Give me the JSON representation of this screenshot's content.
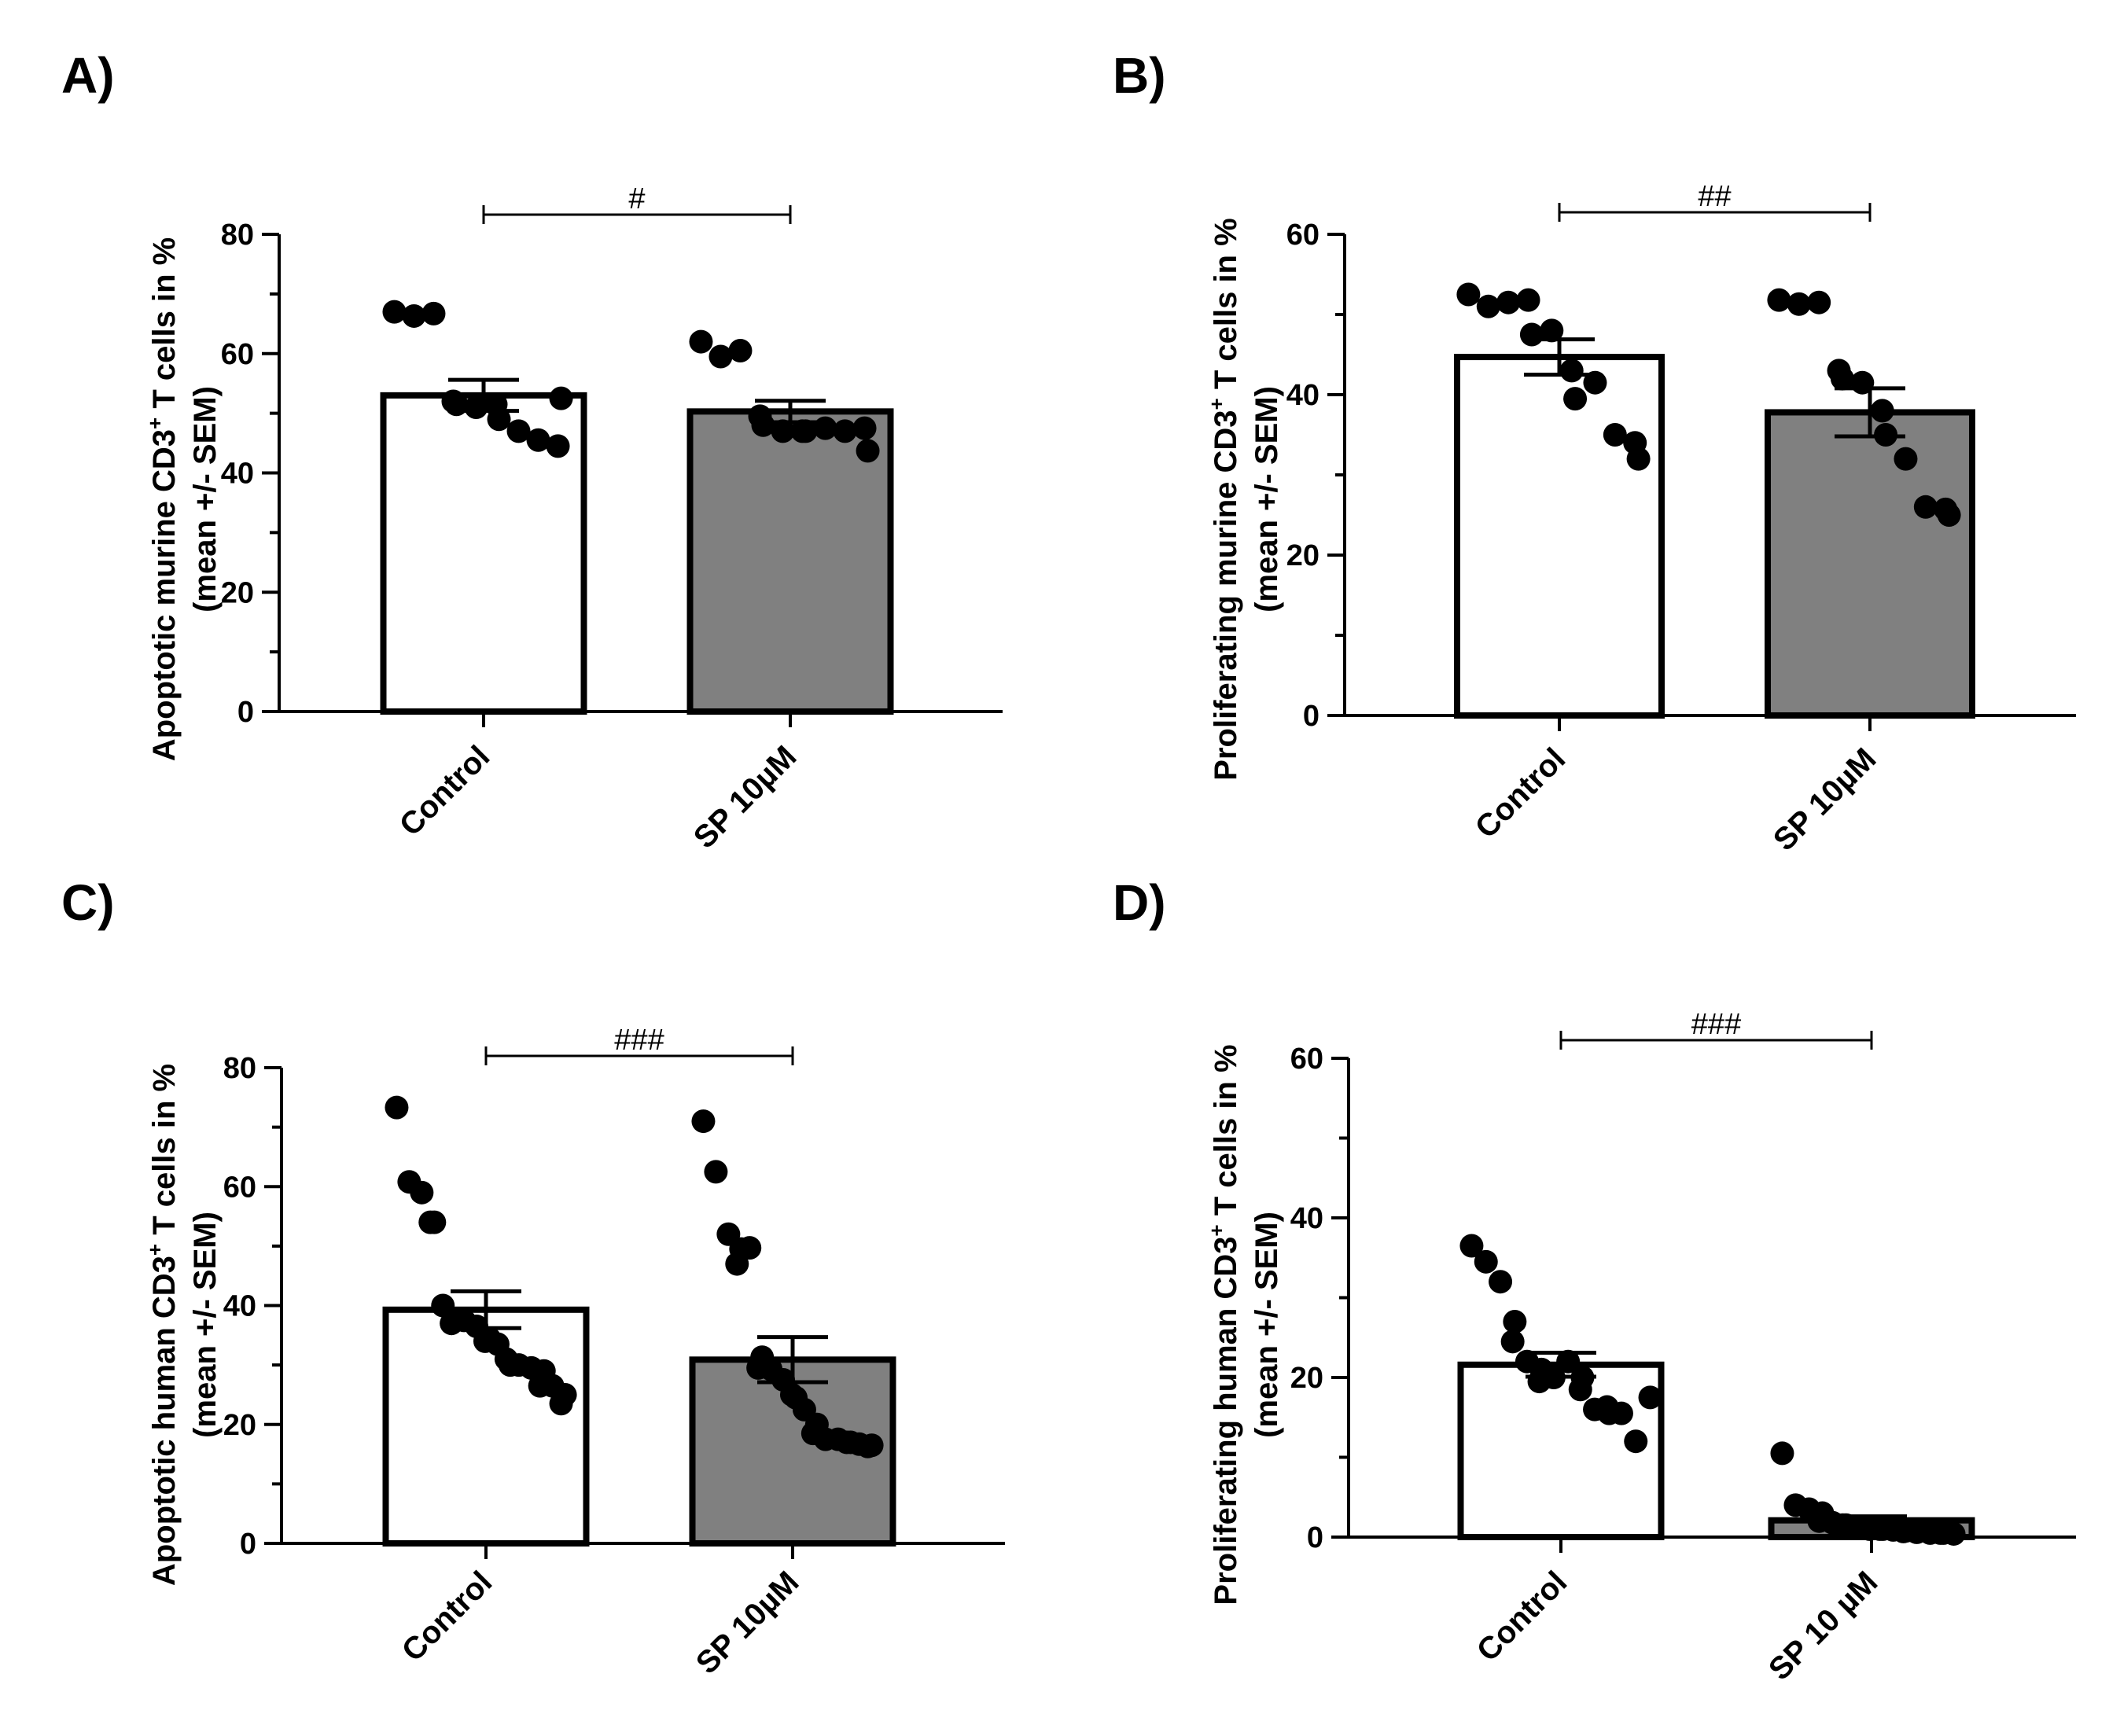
{
  "colors": {
    "axis": "#000000",
    "control_fill": "#ffffff",
    "treatment_fill": "#808080",
    "point": "#000000"
  },
  "chart_data": [
    {
      "type": "bar",
      "panel_label": "A)",
      "ylabel_lines": [
        {
          "pre": "Apoptotic murine  CD3",
          "sup": "+",
          "post": " T cells in %"
        },
        {
          "pre": "(mean +/- SEM)",
          "sup": "",
          "post": ""
        }
      ],
      "categories": [
        "Control",
        "SP 10µM"
      ],
      "means": [
        53,
        50.3
      ],
      "sem": [
        2.6,
        1.8
      ],
      "points": [
        [
          67,
          66.3,
          66.7,
          52,
          51.5,
          51,
          51.5,
          49,
          47,
          45.5,
          44.5,
          52.5
        ],
        [
          62,
          59.5,
          60.5,
          49.5,
          48,
          47,
          47,
          47,
          47.5,
          47,
          47.5,
          43.7
        ]
      ],
      "ylim": [
        0,
        80
      ],
      "yticks": [
        0,
        20,
        40,
        60,
        80
      ],
      "significance": "#"
    },
    {
      "type": "bar",
      "panel_label": "B)",
      "ylabel_lines": [
        {
          "pre": "Proliferating murine CD3",
          "sup": "+",
          "post": " T cells in %"
        },
        {
          "pre": "(mean +/- SEM)",
          "sup": "",
          "post": ""
        }
      ],
      "categories": [
        "Control",
        "SP 10µM"
      ],
      "means": [
        44.7,
        37.8
      ],
      "sem": [
        2.2,
        3.0
      ],
      "points": [
        [
          52.5,
          51,
          51.5,
          51.8,
          47.5,
          48,
          43,
          39.5,
          41.5,
          35,
          34,
          32
        ],
        [
          51.8,
          51.3,
          51.5,
          43,
          42,
          41.5,
          38,
          35,
          32,
          26,
          25.7,
          25
        ]
      ],
      "ylim": [
        0,
        60
      ],
      "yticks": [
        0,
        20,
        40,
        60
      ],
      "significance": "##"
    },
    {
      "type": "bar",
      "panel_label": "C)",
      "ylabel_lines": [
        {
          "pre": "Apoptotic human  CD3",
          "sup": "+",
          "post": " T cells in %"
        },
        {
          "pre": "(mean +/- SEM)",
          "sup": "",
          "post": ""
        }
      ],
      "categories": [
        "Control",
        "SP 10µM"
      ],
      "means": [
        39.3,
        30.9
      ],
      "sem": [
        3.1,
        3.8
      ],
      "points": [
        [
          73.3,
          60.8,
          59,
          54,
          54,
          40,
          37.5,
          37,
          37.5,
          36.5,
          34.5,
          34,
          33.5,
          30,
          31,
          30,
          29.5,
          29,
          26.5,
          26.5,
          25,
          23.5
        ],
        [
          71,
          62.5,
          52,
          49.5,
          47,
          49.7,
          31.3,
          29.5,
          29.3,
          27.5,
          24.5,
          25,
          22.5,
          20,
          18.5,
          17.5,
          17.5,
          17,
          17,
          16.7,
          16.5,
          16.3
        ]
      ],
      "ylim": [
        0,
        80
      ],
      "yticks": [
        0,
        20,
        40,
        60,
        80
      ],
      "significance": "###"
    },
    {
      "type": "bar",
      "panel_label": "D)",
      "ylabel_lines": [
        {
          "pre": "Proliferating human CD3",
          "sup": "+",
          "post": "  T cells in %"
        },
        {
          "pre": "(mean +/- SEM)",
          "sup": "",
          "post": ""
        }
      ],
      "categories": [
        "Control",
        "SP 10 µM"
      ],
      "means": [
        21.6,
        2.1
      ],
      "sem": [
        1.5,
        0.5
      ],
      "points": [
        [
          36.5,
          34.5,
          32,
          27,
          24.5,
          22,
          21,
          19.5,
          20,
          22,
          20,
          18.5,
          16,
          15.5,
          16.3,
          15.5,
          12,
          17.5
        ],
        [
          10.5,
          4,
          3.5,
          3,
          2,
          1.8,
          1.5,
          1.5,
          1.3,
          1,
          1,
          1,
          0.9,
          0.8,
          0.7,
          0.6,
          0.5,
          0.5,
          0.5,
          0.4
        ]
      ],
      "ylim": [
        0,
        60
      ],
      "yticks": [
        0,
        20,
        40,
        60
      ],
      "significance": "###"
    }
  ]
}
